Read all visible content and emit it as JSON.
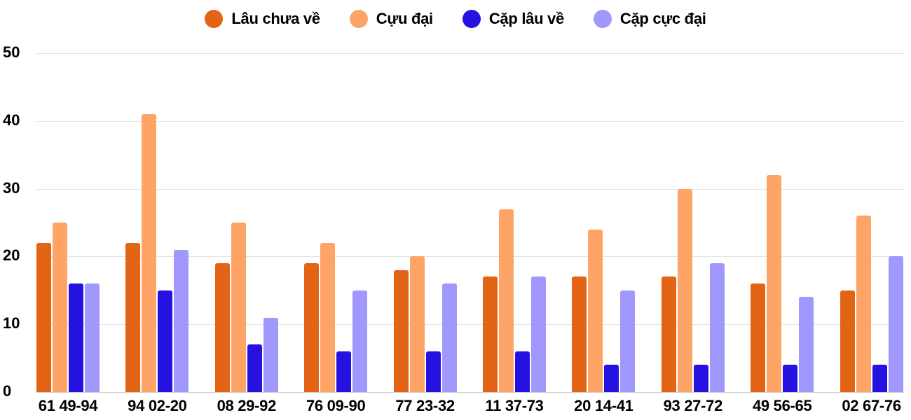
{
  "legend": [
    {
      "label": "Lâu chưa về",
      "color": "#e36414"
    },
    {
      "label": "Cựu đại",
      "color": "#fea467"
    },
    {
      "label": "Cặp lâu về",
      "color": "#2512e0"
    },
    {
      "label": "Cặp cực đại",
      "color": "#a098fd"
    }
  ],
  "y_ticks": [
    "0",
    "10",
    "20",
    "30",
    "40",
    "50"
  ],
  "x_ticks": [
    "61 49-94",
    "94 02-20",
    "08 29-92",
    "76 09-90",
    "77 23-32",
    "11 37-73",
    "20 14-41",
    "93 27-72",
    "49 56-65",
    "02 67-76"
  ],
  "chart_data": {
    "type": "bar",
    "title": "",
    "xlabel": "",
    "ylabel": "",
    "ylim": [
      0,
      50
    ],
    "yticks": [
      0,
      10,
      20,
      30,
      40,
      50
    ],
    "grid": true,
    "legend_position": "top",
    "categories": [
      "61 49-94",
      "94 02-20",
      "08 29-92",
      "76 09-90",
      "77 23-32",
      "11 37-73",
      "20 14-41",
      "93 27-72",
      "49 56-65",
      "02 67-76"
    ],
    "series": [
      {
        "name": "Lâu chưa về",
        "color": "#e36414",
        "values": [
          22,
          22,
          19,
          19,
          18,
          17,
          17,
          17,
          16,
          15
        ]
      },
      {
        "name": "Cựu đại",
        "color": "#fea467",
        "values": [
          25,
          41,
          25,
          22,
          20,
          27,
          24,
          30,
          32,
          26
        ]
      },
      {
        "name": "Cặp lâu về",
        "color": "#2512e0",
        "values": [
          16,
          15,
          7,
          6,
          6,
          6,
          4,
          4,
          4,
          4
        ]
      },
      {
        "name": "Cặp cực đại",
        "color": "#a098fd",
        "values": [
          16,
          21,
          11,
          15,
          16,
          17,
          15,
          19,
          14,
          20
        ]
      }
    ]
  }
}
